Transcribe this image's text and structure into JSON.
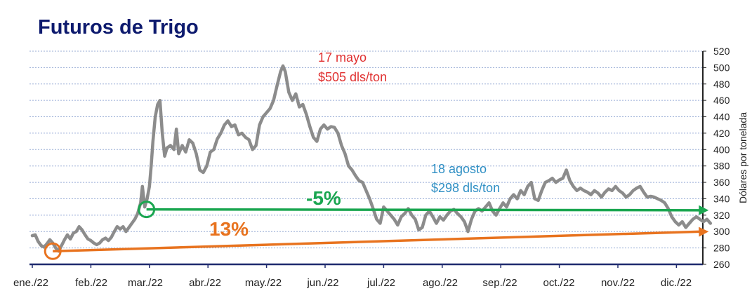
{
  "chart_data": {
    "type": "line",
    "title": "Futuros de Trigo",
    "xlabel": "",
    "ylabel": "Dólares por tonelada",
    "ylim": [
      260,
      520
    ],
    "yticks": [
      260,
      280,
      300,
      320,
      340,
      360,
      380,
      400,
      420,
      440,
      460,
      480,
      500,
      520
    ],
    "xlim": [
      0,
      11.8
    ],
    "month_labels": [
      "ene./22",
      "feb./22",
      "mar./22",
      "abr./22",
      "may./22",
      "jun./22",
      "jul./22",
      "ago./22",
      "sep./22",
      "oct./22",
      "nov./22",
      "dic./22"
    ],
    "grid": true,
    "series": [
      {
        "name": "Futuros de Trigo",
        "color": "#8c8c8c",
        "points": [
          [
            0.0,
            295
          ],
          [
            0.05,
            296
          ],
          [
            0.1,
            288
          ],
          [
            0.15,
            283
          ],
          [
            0.2,
            281
          ],
          [
            0.25,
            285
          ],
          [
            0.3,
            290
          ],
          [
            0.35,
            286
          ],
          [
            0.4,
            280
          ],
          [
            0.45,
            276
          ],
          [
            0.5,
            283
          ],
          [
            0.55,
            290
          ],
          [
            0.6,
            296
          ],
          [
            0.65,
            291
          ],
          [
            0.7,
            298
          ],
          [
            0.75,
            300
          ],
          [
            0.8,
            306
          ],
          [
            0.85,
            302
          ],
          [
            0.9,
            296
          ],
          [
            0.95,
            291
          ],
          [
            1.0,
            289
          ],
          [
            1.05,
            286
          ],
          [
            1.1,
            284
          ],
          [
            1.15,
            286
          ],
          [
            1.2,
            290
          ],
          [
            1.25,
            292
          ],
          [
            1.3,
            289
          ],
          [
            1.35,
            293
          ],
          [
            1.4,
            300
          ],
          [
            1.45,
            306
          ],
          [
            1.5,
            303
          ],
          [
            1.55,
            306
          ],
          [
            1.6,
            300
          ],
          [
            1.65,
            305
          ],
          [
            1.7,
            310
          ],
          [
            1.75,
            315
          ],
          [
            1.8,
            322
          ],
          [
            1.85,
            335
          ],
          [
            1.88,
            355
          ],
          [
            1.92,
            330
          ],
          [
            1.96,
            340
          ],
          [
            2.0,
            355
          ],
          [
            2.03,
            380
          ],
          [
            2.06,
            410
          ],
          [
            2.1,
            440
          ],
          [
            2.14,
            455
          ],
          [
            2.18,
            460
          ],
          [
            2.22,
            420
          ],
          [
            2.26,
            392
          ],
          [
            2.3,
            402
          ],
          [
            2.36,
            405
          ],
          [
            2.42,
            400
          ],
          [
            2.46,
            425
          ],
          [
            2.5,
            395
          ],
          [
            2.56,
            405
          ],
          [
            2.62,
            397
          ],
          [
            2.68,
            412
          ],
          [
            2.74,
            408
          ],
          [
            2.8,
            395
          ],
          [
            2.86,
            375
          ],
          [
            2.92,
            372
          ],
          [
            2.98,
            380
          ],
          [
            3.04,
            397
          ],
          [
            3.1,
            400
          ],
          [
            3.16,
            413
          ],
          [
            3.22,
            420
          ],
          [
            3.28,
            430
          ],
          [
            3.34,
            435
          ],
          [
            3.4,
            428
          ],
          [
            3.46,
            430
          ],
          [
            3.52,
            418
          ],
          [
            3.58,
            420
          ],
          [
            3.64,
            415
          ],
          [
            3.7,
            412
          ],
          [
            3.76,
            400
          ],
          [
            3.82,
            405
          ],
          [
            3.88,
            430
          ],
          [
            3.94,
            440
          ],
          [
            4.0,
            445
          ],
          [
            4.06,
            450
          ],
          [
            4.12,
            460
          ],
          [
            4.18,
            478
          ],
          [
            4.24,
            495
          ],
          [
            4.28,
            502
          ],
          [
            4.32,
            495
          ],
          [
            4.38,
            470
          ],
          [
            4.44,
            460
          ],
          [
            4.5,
            468
          ],
          [
            4.56,
            452
          ],
          [
            4.62,
            455
          ],
          [
            4.68,
            443
          ],
          [
            4.74,
            428
          ],
          [
            4.8,
            415
          ],
          [
            4.86,
            410
          ],
          [
            4.92,
            425
          ],
          [
            4.98,
            430
          ],
          [
            5.04,
            425
          ],
          [
            5.1,
            428
          ],
          [
            5.16,
            427
          ],
          [
            5.22,
            420
          ],
          [
            5.28,
            405
          ],
          [
            5.34,
            395
          ],
          [
            5.4,
            380
          ],
          [
            5.46,
            375
          ],
          [
            5.52,
            368
          ],
          [
            5.58,
            362
          ],
          [
            5.64,
            360
          ],
          [
            5.7,
            350
          ],
          [
            5.76,
            340
          ],
          [
            5.82,
            328
          ],
          [
            5.88,
            315
          ],
          [
            5.94,
            310
          ],
          [
            6.0,
            330
          ],
          [
            6.06,
            325
          ],
          [
            6.12,
            320
          ],
          [
            6.18,
            315
          ],
          [
            6.24,
            308
          ],
          [
            6.3,
            318
          ],
          [
            6.36,
            322
          ],
          [
            6.42,
            328
          ],
          [
            6.48,
            320
          ],
          [
            6.54,
            315
          ],
          [
            6.6,
            302
          ],
          [
            6.66,
            305
          ],
          [
            6.72,
            320
          ],
          [
            6.78,
            325
          ],
          [
            6.84,
            318
          ],
          [
            6.9,
            310
          ],
          [
            6.96,
            318
          ],
          [
            7.02,
            314
          ],
          [
            7.08,
            320
          ],
          [
            7.14,
            325
          ],
          [
            7.2,
            327
          ],
          [
            7.26,
            322
          ],
          [
            7.32,
            318
          ],
          [
            7.38,
            312
          ],
          [
            7.44,
            300
          ],
          [
            7.5,
            315
          ],
          [
            7.56,
            325
          ],
          [
            7.62,
            328
          ],
          [
            7.68,
            325
          ],
          [
            7.74,
            330
          ],
          [
            7.8,
            335
          ],
          [
            7.86,
            325
          ],
          [
            7.92,
            320
          ],
          [
            7.98,
            328
          ],
          [
            8.04,
            335
          ],
          [
            8.1,
            330
          ],
          [
            8.16,
            340
          ],
          [
            8.22,
            345
          ],
          [
            8.28,
            340
          ],
          [
            8.34,
            350
          ],
          [
            8.4,
            345
          ],
          [
            8.46,
            355
          ],
          [
            8.52,
            360
          ],
          [
            8.58,
            340
          ],
          [
            8.64,
            338
          ],
          [
            8.7,
            350
          ],
          [
            8.76,
            360
          ],
          [
            8.82,
            362
          ],
          [
            8.88,
            365
          ],
          [
            8.94,
            360
          ],
          [
            9.0,
            363
          ],
          [
            9.06,
            365
          ],
          [
            9.12,
            375
          ],
          [
            9.18,
            362
          ],
          [
            9.24,
            355
          ],
          [
            9.3,
            350
          ],
          [
            9.36,
            353
          ],
          [
            9.42,
            350
          ],
          [
            9.48,
            348
          ],
          [
            9.54,
            345
          ],
          [
            9.6,
            350
          ],
          [
            9.66,
            347
          ],
          [
            9.72,
            342
          ],
          [
            9.78,
            348
          ],
          [
            9.84,
            352
          ],
          [
            9.9,
            350
          ],
          [
            9.96,
            355
          ],
          [
            10.02,
            350
          ],
          [
            10.08,
            347
          ],
          [
            10.14,
            342
          ],
          [
            10.2,
            345
          ],
          [
            10.26,
            350
          ],
          [
            10.32,
            353
          ],
          [
            10.38,
            355
          ],
          [
            10.44,
            348
          ],
          [
            10.5,
            342
          ],
          [
            10.56,
            343
          ],
          [
            10.62,
            342
          ],
          [
            10.68,
            340
          ],
          [
            10.74,
            338
          ],
          [
            10.8,
            335
          ],
          [
            10.86,
            328
          ],
          [
            10.92,
            318
          ],
          [
            10.98,
            312
          ],
          [
            11.04,
            308
          ],
          [
            11.1,
            312
          ],
          [
            11.16,
            305
          ],
          [
            11.22,
            310
          ],
          [
            11.28,
            315
          ],
          [
            11.34,
            318
          ],
          [
            11.4,
            315
          ],
          [
            11.46,
            312
          ],
          [
            11.52,
            315
          ],
          [
            11.58,
            310
          ]
        ]
      }
    ],
    "trend_lines": [
      {
        "name": "-5%",
        "label": "-5%",
        "color": "#1aa650",
        "from": [
          1.95,
          327
        ],
        "to": [
          11.55,
          326
        ]
      },
      {
        "name": "13%",
        "label": "13%",
        "color": "#e8731f",
        "from": [
          0.35,
          276
        ],
        "to": [
          11.55,
          300
        ]
      }
    ],
    "annotations": [
      {
        "name": "peak-annotation",
        "line1": "17 mayo",
        "line2": "$505 dls/ton",
        "color": "#e03030"
      },
      {
        "name": "august-annotation",
        "line1": "18 agosto",
        "line2": "$298 dls/ton",
        "color": "#2f8fc4"
      }
    ]
  }
}
